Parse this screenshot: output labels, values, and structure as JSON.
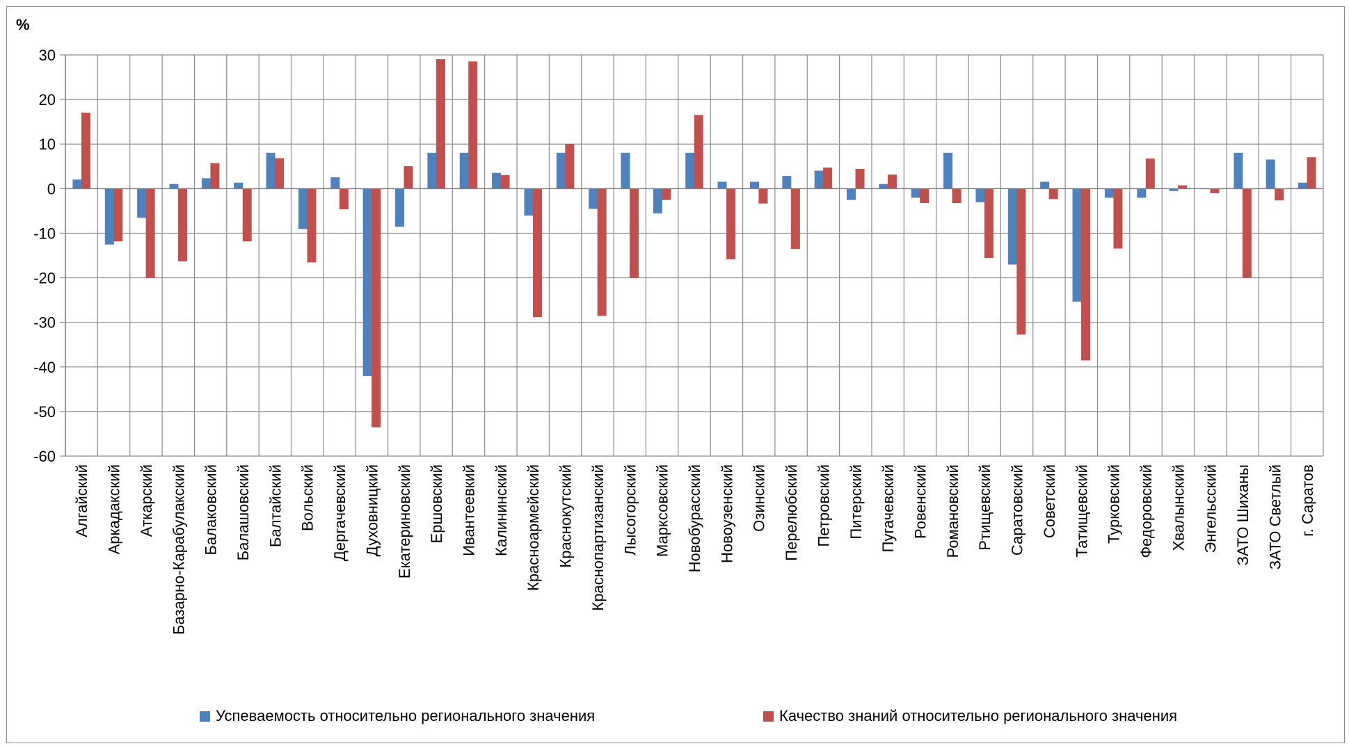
{
  "chart_data": {
    "type": "bar",
    "title": "",
    "ylabel": "%",
    "xlabel": "",
    "ylim": [
      -60,
      30
    ],
    "yticks": [
      30,
      20,
      10,
      0,
      -10,
      -20,
      -30,
      -40,
      -50,
      -60
    ],
    "grid": true,
    "legend_position": "bottom",
    "categories": [
      "Алгайский",
      "Аркадакский",
      "Аткарский",
      "Базарно-Карабулакский",
      "Балаковский",
      "Балашовский",
      "Балтайский",
      "Вольский",
      "Дергачевский",
      "Духовницкий",
      "Екатериновский",
      "Ершовский",
      "Ивантеевкий",
      "Калининский",
      "Красноармейский",
      "Краснокутский",
      "Краснопартизанский",
      "Лысогорский",
      "Марксовский",
      "Новобурасский",
      "Новоузенский",
      "Озинский",
      "Перелюбский",
      "Петровский",
      "Питерский",
      "Пугачевский",
      "Ровенский",
      "Романовский",
      "Ртищевский",
      "Саратовский",
      "Советский",
      "Татищевский",
      "Турковский",
      "Федоровский",
      "Хвалынский",
      "Энгельсский",
      "ЗАТО Шиханы",
      "ЗАТО Светлый",
      "г. Саратов"
    ],
    "series": [
      {
        "name": "Успеваемость относительно регионального значения",
        "color": "#4f81bd",
        "values": [
          2,
          -12.5,
          -6.5,
          1,
          2.3,
          1.3,
          8,
          -9,
          2.5,
          -42,
          -8.5,
          8,
          8,
          3.5,
          -6,
          8,
          -4.5,
          8,
          -5.5,
          8,
          1.5,
          1.5,
          2.8,
          4,
          -2.5,
          1,
          -2,
          8,
          -3,
          -17,
          1.5,
          -25.3,
          -2,
          -2,
          -0.5,
          0,
          8,
          6.5,
          1.3
        ]
      },
      {
        "name": "Качество знаний относительно регионального значения",
        "color": "#c0504d",
        "values": [
          17,
          -11.8,
          -20,
          -16.3,
          5.7,
          -11.8,
          6.8,
          -16.5,
          -4.6,
          -53.5,
          5,
          29,
          28.5,
          3,
          -28.8,
          10,
          -28.5,
          -20,
          -2.5,
          16.5,
          -15.8,
          -3.3,
          -13.5,
          4.7,
          4.4,
          3.1,
          -3.2,
          -3.2,
          -15.5,
          -32.7,
          -2.3,
          -38.5,
          -13.4,
          6.7,
          0.7,
          -1,
          -20,
          -2.6,
          7
        ]
      }
    ]
  }
}
